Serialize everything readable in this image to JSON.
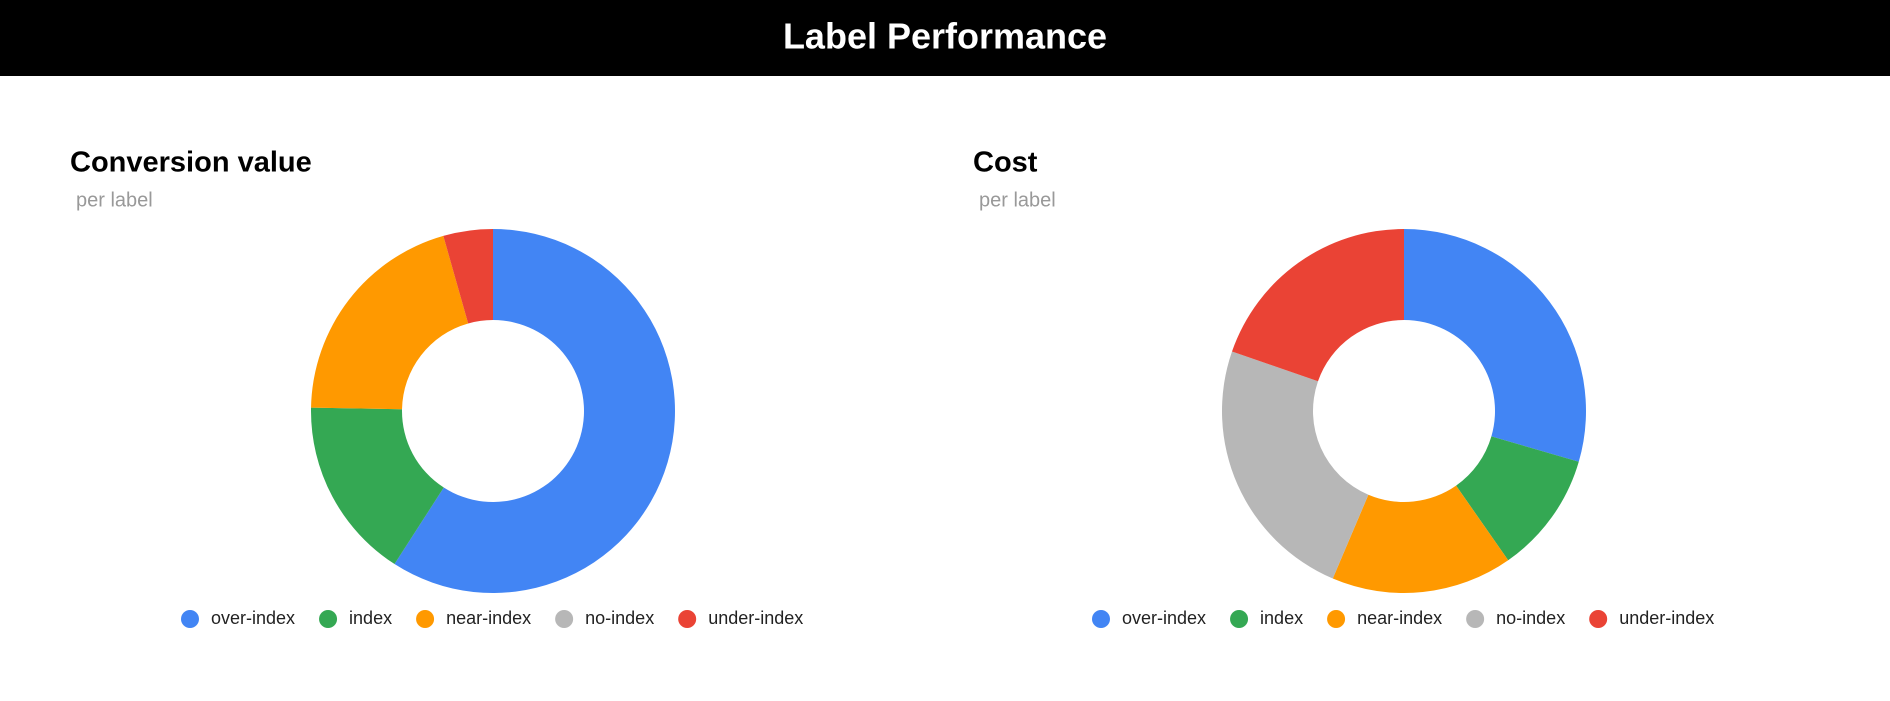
{
  "header": {
    "title": "Label Performance"
  },
  "chart_data": [
    {
      "type": "donut",
      "title": "Conversion value",
      "subtitle": "per label",
      "categories": [
        "over-index",
        "index",
        "near-index",
        "no-index",
        "under-index"
      ],
      "values": [
        59.1,
        16.2,
        20.3,
        0,
        4.4
      ],
      "colors": [
        "#4285f4",
        "#34a853",
        "#ff9900",
        "#b7b7b7",
        "#ea4335"
      ]
    },
    {
      "type": "donut",
      "title": "Cost",
      "subtitle": "per label",
      "categories": [
        "over-index",
        "index",
        "near-index",
        "no-index",
        "under-index"
      ],
      "values": [
        29.5,
        10.8,
        16.1,
        23.9,
        19.7
      ],
      "colors": [
        "#4285f4",
        "#34a853",
        "#ff9900",
        "#b7b7b7",
        "#ea4335"
      ]
    }
  ]
}
